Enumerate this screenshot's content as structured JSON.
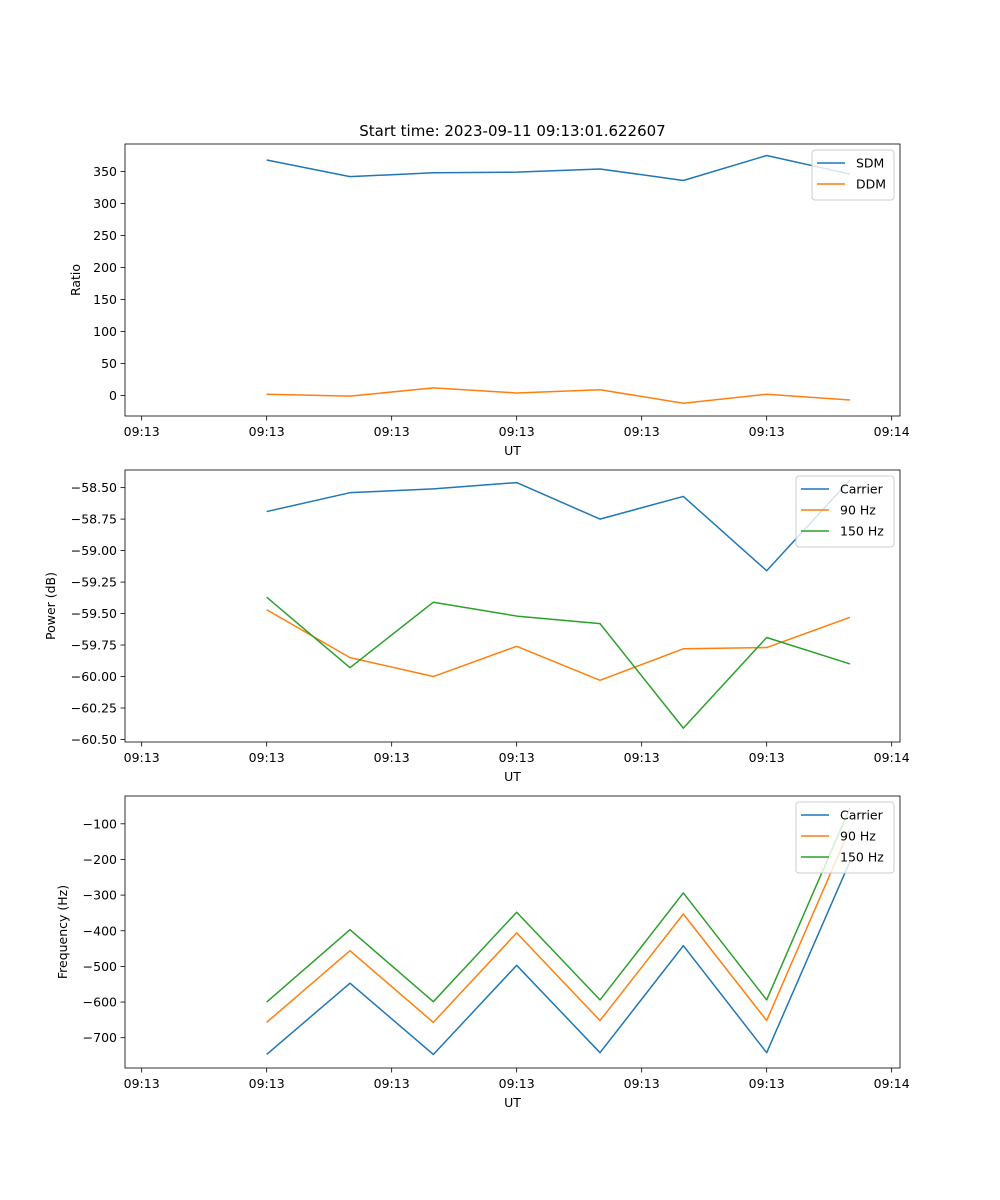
{
  "figure_title": "Start time: 2023-09-11 09:13:01.622607",
  "colors": {
    "c0": "#1f77b4",
    "c1": "#ff7f0e",
    "c2": "#2ca02c"
  },
  "chart_data": [
    {
      "type": "line",
      "title": "Start time: 2023-09-11 09:13:01.622607",
      "xlabel": "UT",
      "ylabel": "Ratio",
      "xlim": [
        -0.7,
        8.6
      ],
      "ylim": [
        -32,
        393
      ],
      "x": [
        1,
        2,
        3,
        4,
        5,
        6,
        7,
        8
      ],
      "xticks": [
        -0.5,
        1,
        2.5,
        4,
        5.5,
        7,
        8.5
      ],
      "xticklabels": [
        "09:13",
        "09:13",
        "09:13",
        "09:13",
        "09:13",
        "09:13",
        "09:14"
      ],
      "yticks": [
        0,
        50,
        100,
        150,
        200,
        250,
        300,
        350
      ],
      "yticklabels": [
        "0",
        "50",
        "100",
        "150",
        "200",
        "250",
        "300",
        "350"
      ],
      "legend_position": "top-right",
      "series": [
        {
          "name": "SDM",
          "color": "#1f77b4",
          "values": [
            368,
            342,
            348,
            349,
            354,
            336,
            375,
            346
          ]
        },
        {
          "name": "DDM",
          "color": "#ff7f0e",
          "values": [
            2,
            -1,
            12,
            4,
            9,
            -12,
            2,
            -7
          ]
        }
      ]
    },
    {
      "type": "line",
      "title": "",
      "xlabel": "UT",
      "ylabel": "Power (dB)",
      "xlim": [
        -0.7,
        8.6
      ],
      "ylim": [
        -60.52,
        -58.36
      ],
      "x": [
        1,
        2,
        3,
        4,
        5,
        6,
        7,
        8
      ],
      "xticks": [
        -0.5,
        1,
        2.5,
        4,
        5.5,
        7,
        8.5
      ],
      "xticklabels": [
        "09:13",
        "09:13",
        "09:13",
        "09:13",
        "09:13",
        "09:13",
        "09:14"
      ],
      "yticks": [
        -60.5,
        -60.25,
        -60,
        -59.75,
        -59.5,
        -59.25,
        -59,
        -58.75,
        -58.5
      ],
      "yticklabels": [
        "−60.50",
        "−60.25",
        "−60.00",
        "−59.75",
        "−59.50",
        "−59.25",
        "−59.00",
        "−58.75",
        "−58.50"
      ],
      "legend_position": "top-right",
      "series": [
        {
          "name": "Carrier",
          "color": "#1f77b4",
          "values": [
            -58.69,
            -58.54,
            -58.51,
            -58.46,
            -58.75,
            -58.57,
            -59.16,
            -58.44
          ]
        },
        {
          "name": "90 Hz",
          "color": "#ff7f0e",
          "values": [
            -59.47,
            -59.85,
            -60.0,
            -59.76,
            -60.03,
            -59.78,
            -59.77,
            -59.53
          ]
        },
        {
          "name": "150 Hz",
          "color": "#2ca02c",
          "values": [
            -59.37,
            -59.93,
            -59.41,
            -59.52,
            -59.58,
            -60.41,
            -59.69,
            -59.9
          ]
        }
      ]
    },
    {
      "type": "line",
      "title": "",
      "xlabel": "UT",
      "ylabel": "Frequency (Hz)",
      "xlim": [
        -0.7,
        8.6
      ],
      "ylim": [
        -785,
        -22
      ],
      "x": [
        1,
        2,
        3,
        4,
        5,
        6,
        7,
        8
      ],
      "xticks": [
        -0.5,
        1,
        2.5,
        4,
        5.5,
        7,
        8.5
      ],
      "xticklabels": [
        "09:13",
        "09:13",
        "09:13",
        "09:13",
        "09:13",
        "09:13",
        "09:14"
      ],
      "yticks": [
        -700,
        -600,
        -500,
        -400,
        -300,
        -200,
        -100
      ],
      "yticklabels": [
        "−700",
        "−600",
        "−500",
        "−400",
        "−300",
        "−200",
        "−100"
      ],
      "legend_position": "top-right",
      "series": [
        {
          "name": "Carrier",
          "color": "#1f77b4",
          "values": [
            -747,
            -547,
            -747,
            -497,
            -742,
            -442,
            -742,
            -205
          ]
        },
        {
          "name": "90 Hz",
          "color": "#ff7f0e",
          "values": [
            -657,
            -456,
            -657,
            -406,
            -652,
            -353,
            -652,
            -113
          ]
        },
        {
          "name": "150 Hz",
          "color": "#2ca02c",
          "values": [
            -600,
            -397,
            -599,
            -348,
            -594,
            -294,
            -594,
            -55
          ]
        }
      ]
    }
  ]
}
